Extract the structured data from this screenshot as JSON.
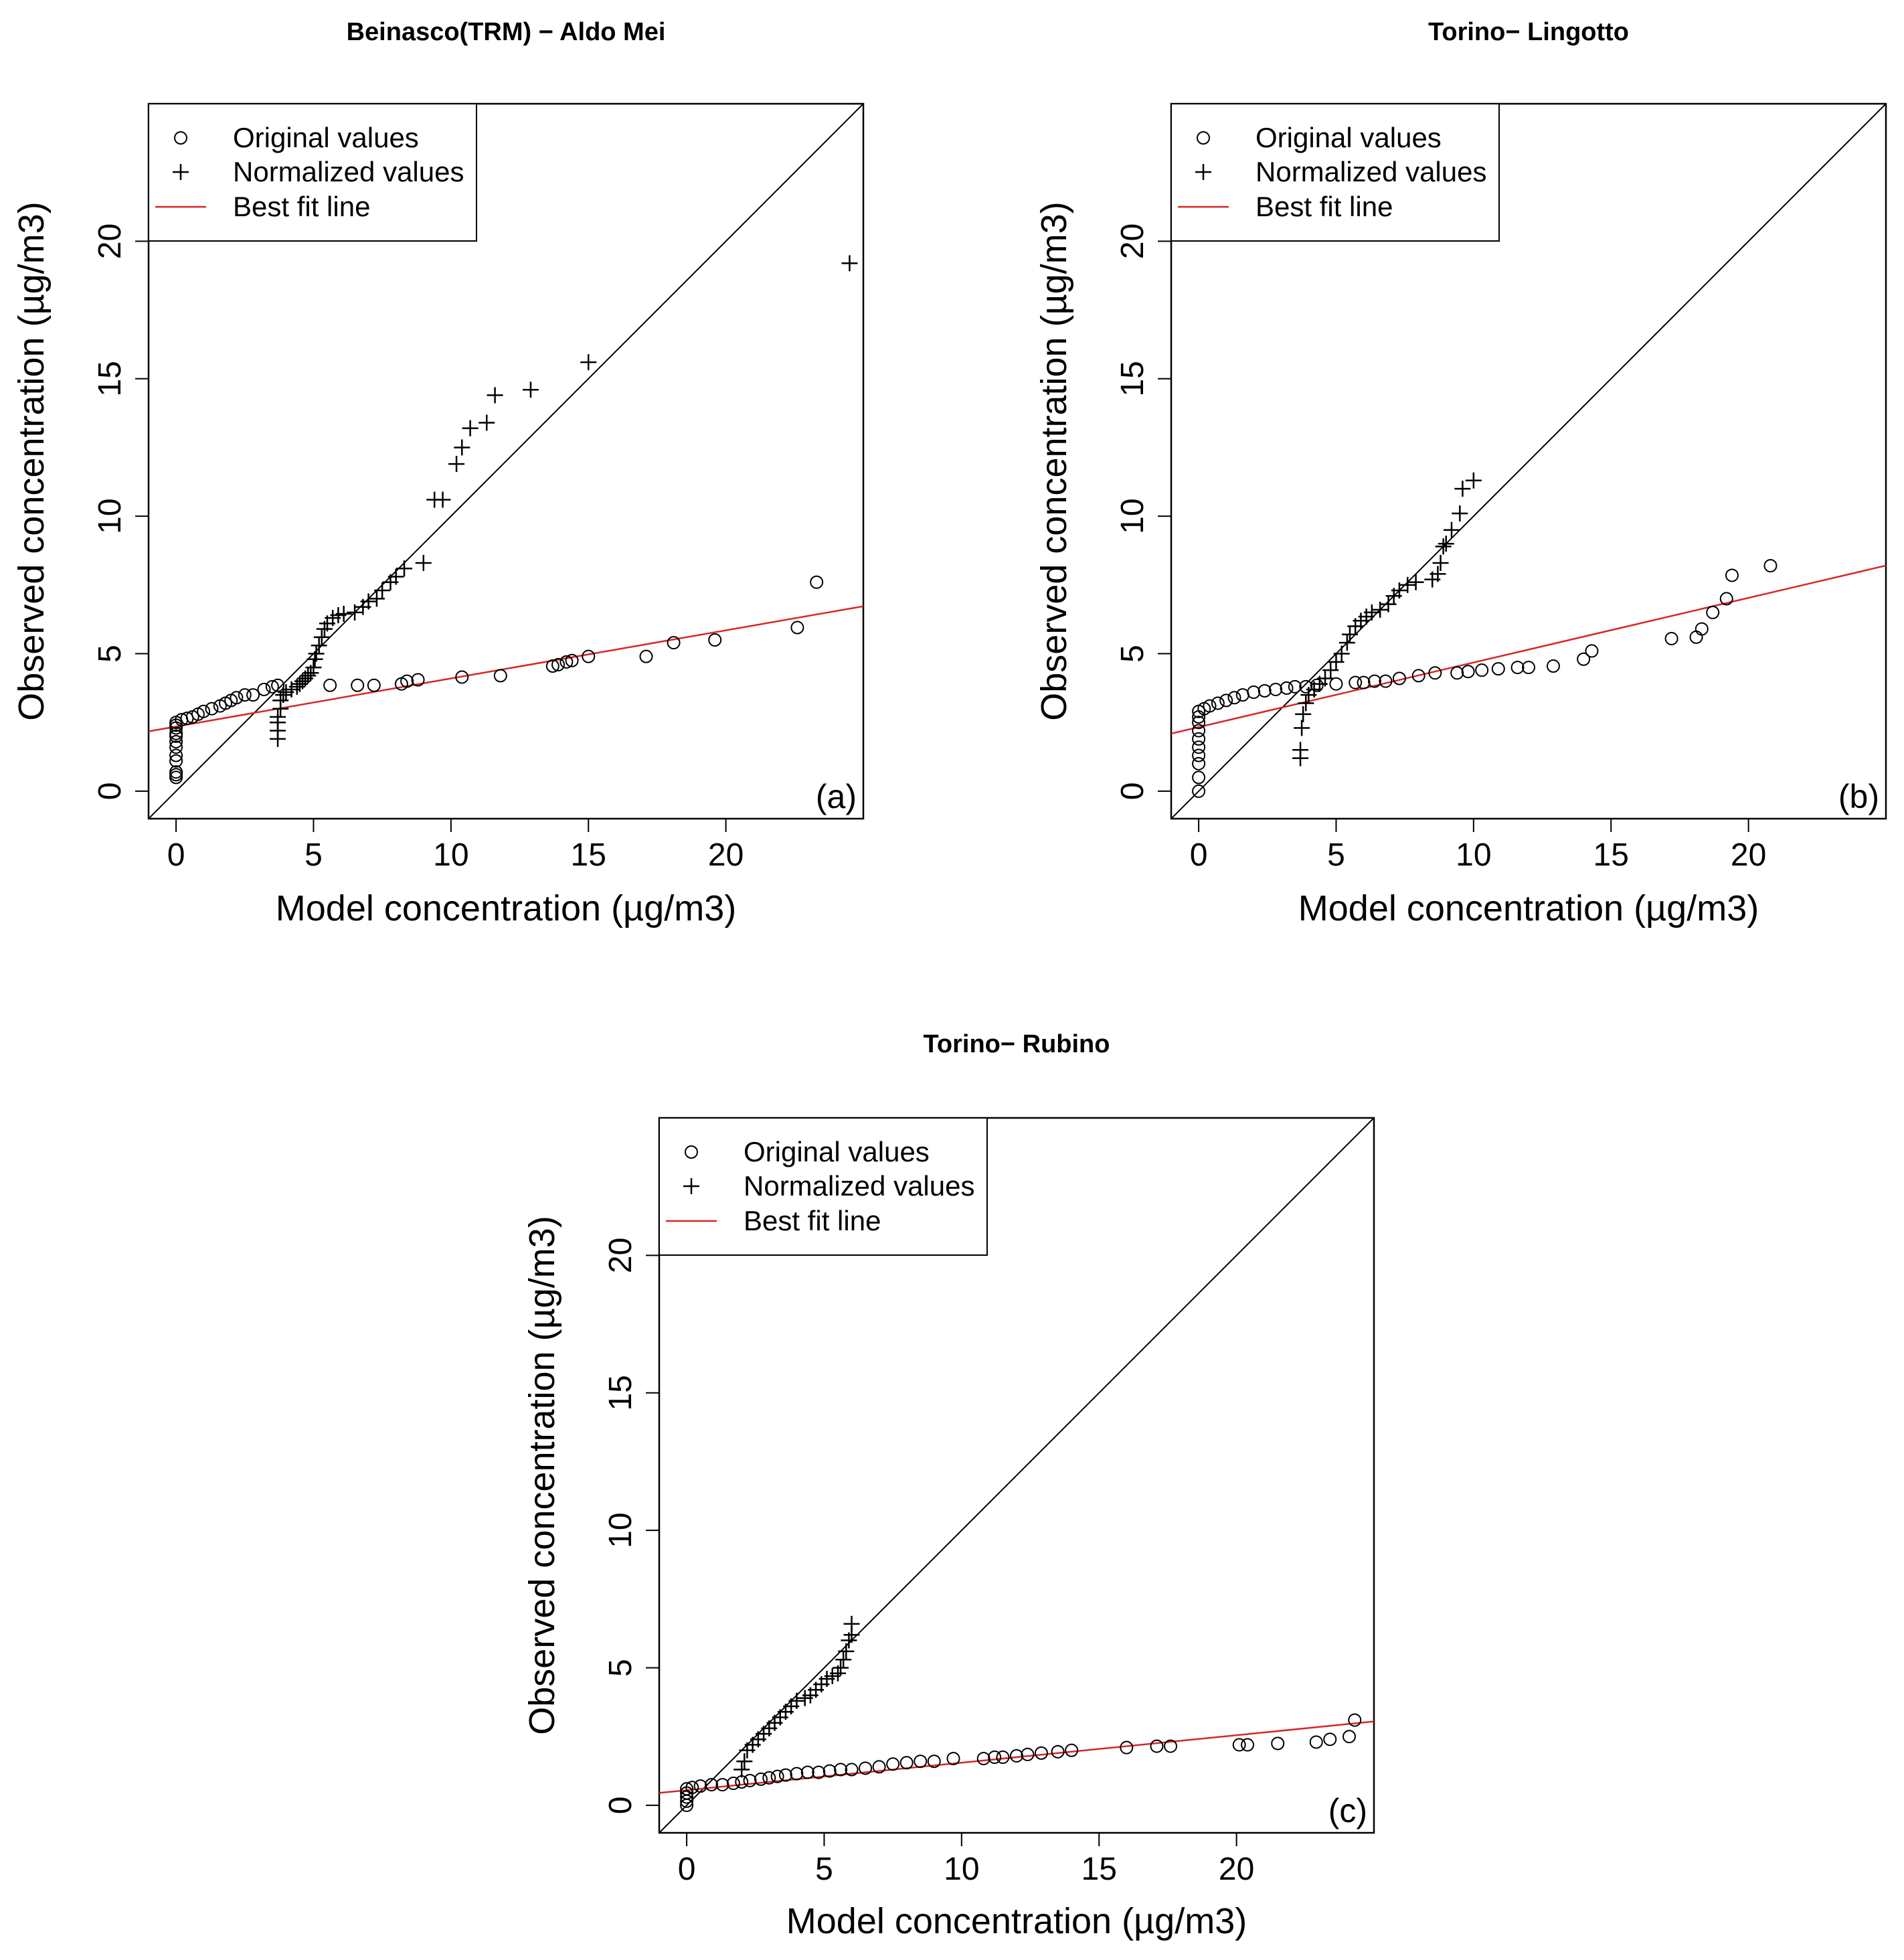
{
  "figure": {
    "shared": {
      "xlabel": "Model concentration (µg/m3)",
      "ylabel": "Observed concentration (µg/m3)",
      "legend": {
        "original": "Original values",
        "normalized": "Normalized values",
        "fit": "Best fit line"
      },
      "colors": {
        "axes": "#000000",
        "fit": "#d62728",
        "identity": "#000000"
      }
    }
  },
  "chart_data": [
    {
      "type": "scatter",
      "panel_label": "(a)",
      "title": "Beinasco(TRM) − Aldo Mei",
      "xlabel": "Model concentration (µg/m3)",
      "ylabel": "Observed concentration (µg/m3)",
      "xlim": [
        -1,
        25
      ],
      "ylim": [
        -1,
        25
      ],
      "xticks": [
        0,
        5,
        10,
        15,
        20
      ],
      "yticks": [
        0,
        5,
        10,
        15,
        20
      ],
      "legend_position": "top-left",
      "identity_line": true,
      "fit_line": {
        "intercept": 2.35,
        "slope": 0.175
      },
      "series": [
        {
          "name": "Original values",
          "marker": "circle",
          "points": [
            [
              0,
              0.5
            ],
            [
              0,
              0.6
            ],
            [
              0,
              0.7
            ],
            [
              0,
              1.1
            ],
            [
              0,
              1.3
            ],
            [
              0,
              1.6
            ],
            [
              0,
              1.8
            ],
            [
              0,
              2.0
            ],
            [
              0,
              2.1
            ],
            [
              0,
              2.3
            ],
            [
              0,
              2.4
            ],
            [
              0,
              2.5
            ],
            [
              0.2,
              2.6
            ],
            [
              0.4,
              2.65
            ],
            [
              0.6,
              2.7
            ],
            [
              0.8,
              2.8
            ],
            [
              1.0,
              2.9
            ],
            [
              1.3,
              3.0
            ],
            [
              1.6,
              3.1
            ],
            [
              1.8,
              3.2
            ],
            [
              2.0,
              3.3
            ],
            [
              2.2,
              3.4
            ],
            [
              2.5,
              3.5
            ],
            [
              2.8,
              3.5
            ],
            [
              3.2,
              3.7
            ],
            [
              3.5,
              3.8
            ],
            [
              3.7,
              3.85
            ],
            [
              5.6,
              3.85
            ],
            [
              6.6,
              3.85
            ],
            [
              7.2,
              3.85
            ],
            [
              8.2,
              3.9
            ],
            [
              8.4,
              4.0
            ],
            [
              8.8,
              4.05
            ],
            [
              10.4,
              4.15
            ],
            [
              11.8,
              4.2
            ],
            [
              13.7,
              4.55
            ],
            [
              13.9,
              4.6
            ],
            [
              14.2,
              4.7
            ],
            [
              14.4,
              4.75
            ],
            [
              15.0,
              4.9
            ],
            [
              17.1,
              4.9
            ],
            [
              18.1,
              5.4
            ],
            [
              19.6,
              5.5
            ],
            [
              22.6,
              5.95
            ],
            [
              23.3,
              7.6
            ]
          ]
        },
        {
          "name": "Normalized values",
          "marker": "plus",
          "points": [
            [
              3.7,
              1.9
            ],
            [
              3.7,
              2.2
            ],
            [
              3.7,
              2.5
            ],
            [
              3.7,
              2.7
            ],
            [
              3.8,
              3.0
            ],
            [
              3.8,
              3.3
            ],
            [
              3.9,
              3.5
            ],
            [
              4.0,
              3.6
            ],
            [
              4.2,
              3.7
            ],
            [
              4.4,
              3.8
            ],
            [
              4.5,
              3.9
            ],
            [
              4.6,
              4.0
            ],
            [
              4.7,
              4.1
            ],
            [
              4.8,
              4.2
            ],
            [
              4.9,
              4.3
            ],
            [
              5.0,
              4.5
            ],
            [
              5.05,
              4.8
            ],
            [
              5.1,
              5.0
            ],
            [
              5.2,
              5.3
            ],
            [
              5.3,
              5.6
            ],
            [
              5.4,
              5.9
            ],
            [
              5.5,
              6.1
            ],
            [
              5.7,
              6.3
            ],
            [
              5.9,
              6.4
            ],
            [
              6.1,
              6.45
            ],
            [
              6.5,
              6.5
            ],
            [
              6.8,
              6.7
            ],
            [
              7.0,
              6.9
            ],
            [
              7.3,
              7.0
            ],
            [
              7.5,
              7.3
            ],
            [
              7.8,
              7.6
            ],
            [
              8.0,
              7.8
            ],
            [
              8.3,
              8.1
            ],
            [
              9.0,
              8.3
            ],
            [
              9.4,
              10.6
            ],
            [
              9.7,
              10.6
            ],
            [
              10.2,
              11.9
            ],
            [
              10.4,
              12.5
            ],
            [
              10.7,
              13.2
            ],
            [
              11.3,
              13.4
            ],
            [
              11.6,
              14.4
            ],
            [
              12.9,
              14.6
            ],
            [
              15.0,
              15.6
            ],
            [
              24.5,
              19.2
            ]
          ]
        }
      ]
    },
    {
      "type": "scatter",
      "panel_label": "(b)",
      "title": "Torino− Lingotto",
      "xlabel": "Model concentration (µg/m3)",
      "ylabel": "Observed concentration (µg/m3)",
      "xlim": [
        -1,
        25
      ],
      "ylim": [
        -1,
        25
      ],
      "xticks": [
        0,
        5,
        10,
        15,
        20
      ],
      "yticks": [
        0,
        5,
        10,
        15,
        20
      ],
      "legend_position": "top-left",
      "identity_line": true,
      "fit_line": {
        "intercept": 2.33,
        "slope": 0.235
      },
      "series": [
        {
          "name": "Original values",
          "marker": "circle",
          "points": [
            [
              0,
              0.0
            ],
            [
              0,
              0.5
            ],
            [
              0,
              1.0
            ],
            [
              0,
              1.3
            ],
            [
              0,
              1.6
            ],
            [
              0,
              1.9
            ],
            [
              0,
              2.2
            ],
            [
              0,
              2.5
            ],
            [
              0,
              2.7
            ],
            [
              0,
              2.9
            ],
            [
              0.2,
              3.0
            ],
            [
              0.4,
              3.1
            ],
            [
              0.7,
              3.2
            ],
            [
              1.0,
              3.3
            ],
            [
              1.3,
              3.4
            ],
            [
              1.6,
              3.5
            ],
            [
              2.0,
              3.6
            ],
            [
              2.4,
              3.65
            ],
            [
              2.8,
              3.7
            ],
            [
              3.2,
              3.75
            ],
            [
              3.5,
              3.8
            ],
            [
              3.9,
              3.8
            ],
            [
              4.3,
              3.85
            ],
            [
              5.0,
              3.9
            ],
            [
              5.7,
              3.95
            ],
            [
              6.0,
              3.95
            ],
            [
              6.4,
              4.0
            ],
            [
              6.8,
              4.0
            ],
            [
              7.3,
              4.1
            ],
            [
              8.0,
              4.2
            ],
            [
              8.6,
              4.3
            ],
            [
              9.4,
              4.3
            ],
            [
              9.8,
              4.35
            ],
            [
              10.3,
              4.4
            ],
            [
              10.9,
              4.45
            ],
            [
              11.6,
              4.5
            ],
            [
              12.0,
              4.5
            ],
            [
              12.9,
              4.55
            ],
            [
              14.0,
              4.8
            ],
            [
              14.3,
              5.1
            ],
            [
              17.2,
              5.55
            ],
            [
              18.1,
              5.6
            ],
            [
              18.3,
              5.9
            ],
            [
              18.7,
              6.5
            ],
            [
              19.2,
              7.0
            ],
            [
              19.4,
              7.85
            ],
            [
              20.8,
              8.2
            ]
          ]
        },
        {
          "name": "Normalized values",
          "marker": "plus",
          "points": [
            [
              3.7,
              1.2
            ],
            [
              3.7,
              1.5
            ],
            [
              3.75,
              2.3
            ],
            [
              3.8,
              2.8
            ],
            [
              3.9,
              3.2
            ],
            [
              4.0,
              3.5
            ],
            [
              4.2,
              3.7
            ],
            [
              4.4,
              3.9
            ],
            [
              4.6,
              4.1
            ],
            [
              4.8,
              4.4
            ],
            [
              5.0,
              4.7
            ],
            [
              5.2,
              5.0
            ],
            [
              5.4,
              5.4
            ],
            [
              5.5,
              5.7
            ],
            [
              5.7,
              6.0
            ],
            [
              5.9,
              6.2
            ],
            [
              6.1,
              6.35
            ],
            [
              6.3,
              6.5
            ],
            [
              6.6,
              6.6
            ],
            [
              6.9,
              6.8
            ],
            [
              7.1,
              7.1
            ],
            [
              7.3,
              7.3
            ],
            [
              7.6,
              7.5
            ],
            [
              7.9,
              7.6
            ],
            [
              8.5,
              7.7
            ],
            [
              8.7,
              7.9
            ],
            [
              8.8,
              8.3
            ],
            [
              8.9,
              8.9
            ],
            [
              9.0,
              9.0
            ],
            [
              9.2,
              9.5
            ],
            [
              9.5,
              10.1
            ],
            [
              9.6,
              11.0
            ],
            [
              10.0,
              11.3
            ]
          ]
        }
      ]
    },
    {
      "type": "scatter",
      "panel_label": "(c)",
      "title": "Torino− Rubino",
      "xlabel": "Model concentration (µg/m3)",
      "ylabel": "Observed concentration (µg/m3)",
      "xlim": [
        -1,
        25
      ],
      "ylim": [
        -1,
        25
      ],
      "xticks": [
        0,
        5,
        10,
        15,
        20
      ],
      "yticks": [
        0,
        5,
        10,
        15,
        20
      ],
      "legend_position": "top-left",
      "identity_line": true,
      "fit_line": {
        "intercept": 0.55,
        "slope": 0.1
      },
      "series": [
        {
          "name": "Original values",
          "marker": "circle",
          "points": [
            [
              0,
              0.0
            ],
            [
              0,
              0.15
            ],
            [
              0,
              0.3
            ],
            [
              0,
              0.45
            ],
            [
              0,
              0.6
            ],
            [
              0.2,
              0.65
            ],
            [
              0.5,
              0.7
            ],
            [
              0.9,
              0.75
            ],
            [
              1.3,
              0.75
            ],
            [
              1.7,
              0.8
            ],
            [
              2.0,
              0.85
            ],
            [
              2.3,
              0.9
            ],
            [
              2.7,
              0.95
            ],
            [
              3.0,
              1.0
            ],
            [
              3.3,
              1.05
            ],
            [
              3.6,
              1.1
            ],
            [
              4.0,
              1.15
            ],
            [
              4.4,
              1.2
            ],
            [
              4.8,
              1.2
            ],
            [
              5.2,
              1.25
            ],
            [
              5.6,
              1.3
            ],
            [
              6.0,
              1.3
            ],
            [
              6.5,
              1.35
            ],
            [
              7.0,
              1.4
            ],
            [
              7.5,
              1.5
            ],
            [
              8.0,
              1.55
            ],
            [
              8.5,
              1.6
            ],
            [
              9.0,
              1.6
            ],
            [
              9.7,
              1.7
            ],
            [
              10.8,
              1.7
            ],
            [
              11.2,
              1.75
            ],
            [
              11.5,
              1.75
            ],
            [
              12.0,
              1.8
            ],
            [
              12.4,
              1.85
            ],
            [
              12.9,
              1.9
            ],
            [
              13.5,
              1.95
            ],
            [
              14.0,
              2.0
            ],
            [
              16.0,
              2.1
            ],
            [
              17.1,
              2.15
            ],
            [
              17.6,
              2.15
            ],
            [
              20.1,
              2.2
            ],
            [
              20.4,
              2.2
            ],
            [
              21.5,
              2.25
            ],
            [
              22.9,
              2.3
            ],
            [
              23.4,
              2.4
            ],
            [
              24.1,
              2.5
            ],
            [
              24.3,
              3.1
            ]
          ]
        },
        {
          "name": "Normalized values",
          "marker": "plus",
          "points": [
            [
              2.0,
              1.3
            ],
            [
              2.1,
              1.6
            ],
            [
              2.2,
              2.0
            ],
            [
              2.4,
              2.2
            ],
            [
              2.6,
              2.4
            ],
            [
              2.8,
              2.6
            ],
            [
              3.0,
              2.8
            ],
            [
              3.2,
              3.0
            ],
            [
              3.4,
              3.2
            ],
            [
              3.6,
              3.4
            ],
            [
              3.8,
              3.6
            ],
            [
              4.0,
              3.8
            ],
            [
              4.3,
              3.9
            ],
            [
              4.5,
              4.0
            ],
            [
              4.7,
              4.2
            ],
            [
              4.9,
              4.4
            ],
            [
              5.1,
              4.6
            ],
            [
              5.3,
              4.7
            ],
            [
              5.5,
              4.8
            ],
            [
              5.6,
              5.0
            ],
            [
              5.7,
              5.3
            ],
            [
              5.8,
              5.6
            ],
            [
              5.9,
              6.0
            ],
            [
              6.0,
              6.2
            ],
            [
              6.0,
              6.6
            ]
          ]
        }
      ]
    }
  ]
}
